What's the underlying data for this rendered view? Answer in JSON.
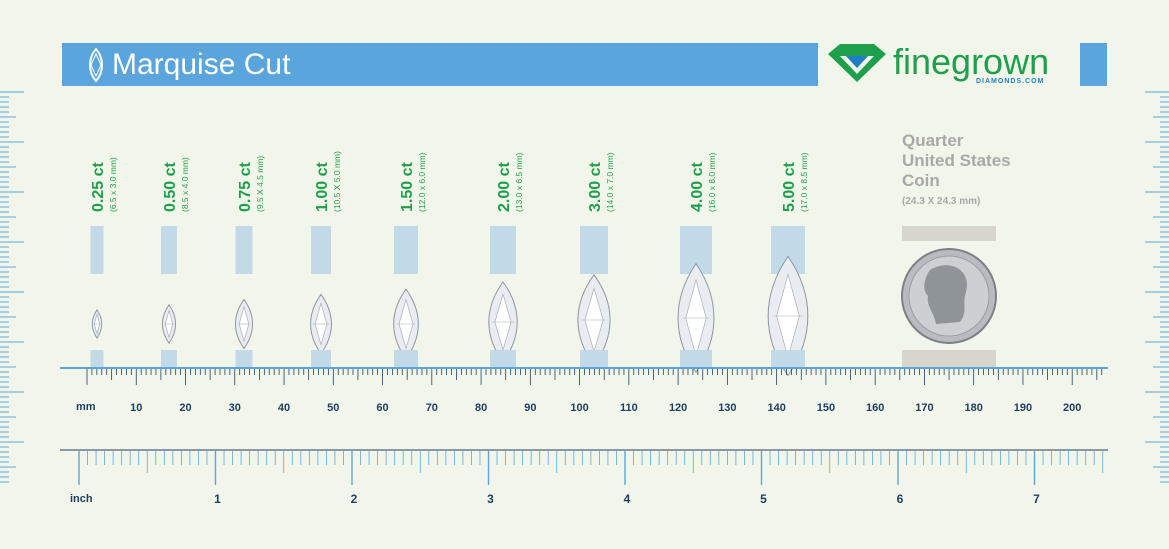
{
  "banner": {
    "title": "Marquise Cut"
  },
  "logo": {
    "word": "finegrown",
    "sub": "DIAMONDS.COM"
  },
  "coin": {
    "title_lines": [
      "Quarter",
      "United States",
      "Coin"
    ],
    "size": "(24.3 X 24.3 mm)"
  },
  "colors": {
    "banner": "#5aa6dc",
    "carat_green": "#1d9f4c",
    "ruler": "#1e3f63",
    "bar": "#c2d9e8",
    "coin_bar": "#d6d6cf",
    "background": "#f2f6ea"
  },
  "icons": {
    "banner": "marquise-outline-icon",
    "logo": "diamond-logo-icon",
    "coin": "quarter-coin-icon"
  },
  "diamonds": [
    {
      "carat": "0.25 ct",
      "dims": "(6.5 x 3.0 mm)"
    },
    {
      "carat": "0.50 ct",
      "dims": "(8.5 x 4.0 mm)"
    },
    {
      "carat": "0.75 ct",
      "dims": "(9.5 X 4.5 mm)"
    },
    {
      "carat": "1.00 ct",
      "dims": "(10.5 X 5.0 mm)"
    },
    {
      "carat": "1.50 ct",
      "dims": "(12.0 x 6.0 mm)"
    },
    {
      "carat": "2.00 ct",
      "dims": "(13.0 x 6.5 mm)"
    },
    {
      "carat": "3.00 ct",
      "dims": "(14.0 x 7.0 mm)"
    },
    {
      "carat": "4.00 ct",
      "dims": "(16.0 x 8.0 mm)"
    },
    {
      "carat": "5.00 ct",
      "dims": "(17.0 x 8.5 mm)"
    }
  ],
  "ruler_mm": {
    "unit": "mm",
    "labels": [
      "10",
      "20",
      "30",
      "40",
      "50",
      "60",
      "70",
      "80",
      "90",
      "100",
      "110",
      "120",
      "130",
      "140",
      "150",
      "160",
      "170",
      "180",
      "190",
      "200"
    ]
  },
  "ruler_inch": {
    "unit": "inch",
    "labels": [
      "1",
      "2",
      "3",
      "4",
      "5",
      "6",
      "7"
    ]
  }
}
